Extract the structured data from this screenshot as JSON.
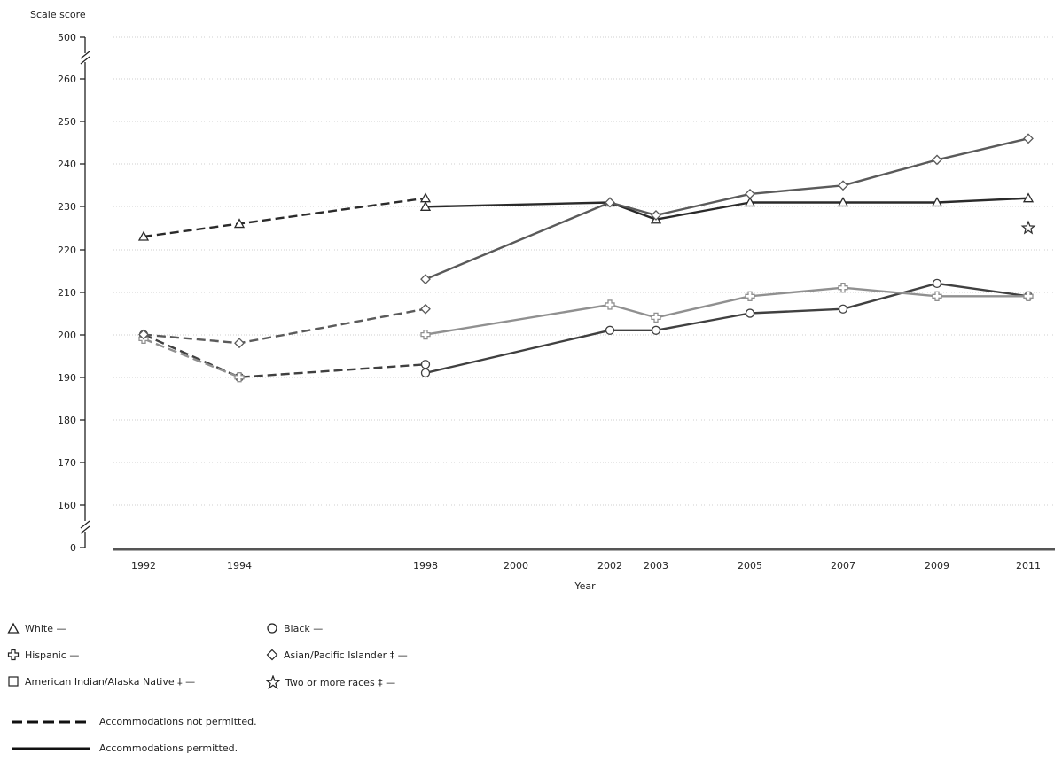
{
  "chart_data": {
    "type": "line",
    "ylabel": "Scale score",
    "xlabel": "Year",
    "y_tick_labels": [
      "500",
      "260",
      "250",
      "240",
      "230",
      "220",
      "210",
      "200",
      "190",
      "180",
      "170",
      "160",
      "0"
    ],
    "y_axis_breaks": [
      "between 260 and 500",
      "between 0 and 160"
    ],
    "ylim": [
      160,
      260
    ],
    "x": [
      "1992",
      "1994",
      "1998",
      "2000",
      "2002",
      "2003",
      "2005",
      "2007",
      "2009",
      "2011"
    ],
    "grid": true,
    "series": [
      {
        "name": "White",
        "marker": "triangle",
        "not_permitted": [
          {
            "x": "1992",
            "y": 223
          },
          {
            "x": "1994",
            "y": 226
          },
          {
            "x": "1998",
            "y": 232
          }
        ],
        "permitted": [
          {
            "x": "1998",
            "y": 230
          },
          {
            "x": "2002",
            "y": 231
          },
          {
            "x": "2003",
            "y": 227
          },
          {
            "x": "2005",
            "y": 231
          },
          {
            "x": "2007",
            "y": 231
          },
          {
            "x": "2009",
            "y": 231
          },
          {
            "x": "2011",
            "y": 232
          }
        ]
      },
      {
        "name": "Black",
        "marker": "circle",
        "not_permitted": [
          {
            "x": "1992",
            "y": 200
          },
          {
            "x": "1994",
            "y": 190
          },
          {
            "x": "1998",
            "y": 193
          }
        ],
        "permitted": [
          {
            "x": "1998",
            "y": 191
          },
          {
            "x": "2002",
            "y": 201
          },
          {
            "x": "2003",
            "y": 201
          },
          {
            "x": "2005",
            "y": 205
          },
          {
            "x": "2007",
            "y": 206
          },
          {
            "x": "2009",
            "y": 212
          },
          {
            "x": "2011",
            "y": 209
          }
        ]
      },
      {
        "name": "Hispanic",
        "marker": "cross",
        "not_permitted": [
          {
            "x": "1992",
            "y": 199
          },
          {
            "x": "1994",
            "y": 190
          }
        ],
        "permitted": [
          {
            "x": "1998",
            "y": 200
          },
          {
            "x": "2002",
            "y": 207
          },
          {
            "x": "2003",
            "y": 204
          },
          {
            "x": "2005",
            "y": 209
          },
          {
            "x": "2007",
            "y": 211
          },
          {
            "x": "2009",
            "y": 209
          },
          {
            "x": "2011",
            "y": 209
          }
        ]
      },
      {
        "name": "Asian/Pacific Islander ‡",
        "marker": "diamond",
        "not_permitted": [
          {
            "x": "1992",
            "y": 200
          },
          {
            "x": "1994",
            "y": 198
          },
          {
            "x": "1998",
            "y": 206
          }
        ],
        "permitted": [
          {
            "x": "1998",
            "y": 213
          },
          {
            "x": "2002",
            "y": 231
          },
          {
            "x": "2003",
            "y": 228
          },
          {
            "x": "2005",
            "y": 233
          },
          {
            "x": "2007",
            "y": 235
          },
          {
            "x": "2009",
            "y": 241
          },
          {
            "x": "2011",
            "y": 246
          }
        ]
      },
      {
        "name": "American Indian/Alaska Native ‡",
        "marker": "square",
        "not_permitted": [],
        "permitted": []
      },
      {
        "name": "Two or more races ‡",
        "marker": "star",
        "not_permitted": [],
        "permitted": [
          {
            "x": "2011",
            "y": 225
          }
        ]
      }
    ],
    "series_colors": {
      "White": "#2a2a2a",
      "Black": "#404040",
      "Hispanic": "#909090",
      "Asian/Pacific Islander ‡": "#5a5a5a",
      "American Indian/Alaska Native ‡": "#333333",
      "Two or more races ‡": "#333333"
    },
    "legend_placement": "bottom-left",
    "legend": {
      "entries": [
        {
          "series": "White",
          "marker": "triangle",
          "label": "White —"
        },
        {
          "series": "Black",
          "marker": "circle",
          "label": "Black —"
        },
        {
          "series": "Hispanic",
          "marker": "cross",
          "label": "Hispanic —"
        },
        {
          "series": "Asian/Pacific Islander ‡",
          "marker": "diamond",
          "label": "Asian/Pacific Islander ‡ —"
        },
        {
          "series": "American Indian/Alaska Native ‡",
          "marker": "square",
          "label": "American Indian/Alaska Native ‡ —"
        },
        {
          "series": "Two or more races ‡",
          "marker": "star",
          "label": "Two or more races ‡ —"
        }
      ],
      "line_styles": [
        {
          "style": "dashed",
          "label": "Accommodations not permitted."
        },
        {
          "style": "solid",
          "label": "Accommodations permitted."
        }
      ]
    }
  }
}
